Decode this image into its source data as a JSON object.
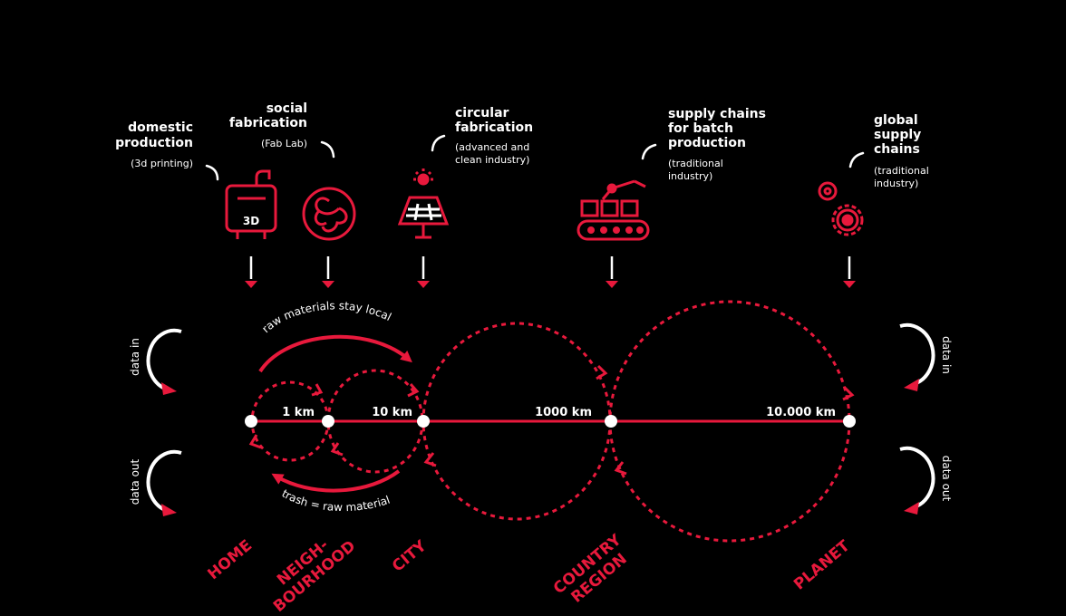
{
  "colors": {
    "accent": "#e8193c",
    "background": "#000000",
    "text": "#ffffff"
  },
  "production_types": [
    {
      "title_lines": [
        "domestic",
        "production"
      ],
      "sub_lines": [
        "(3d printing)"
      ],
      "icon": "3d-printer-icon",
      "icon_text": "3D"
    },
    {
      "title_lines": [
        "social",
        "fabrication"
      ],
      "sub_lines": [
        "(Fab Lab)"
      ],
      "icon": "fab-lab-icon"
    },
    {
      "title_lines": [
        "circular",
        "fabrication"
      ],
      "sub_lines": [
        "(advanced and",
        "clean industry)"
      ],
      "icon": "solar-panel-icon"
    },
    {
      "title_lines": [
        "supply chains",
        "for batch",
        "production"
      ],
      "sub_lines": [
        "(traditional",
        "industry)"
      ],
      "icon": "robot-assembly-line-icon"
    },
    {
      "title_lines": [
        "global",
        "supply",
        "chains"
      ],
      "sub_lines": [
        "(traditional",
        "industry)"
      ],
      "icon": "gears-icon"
    }
  ],
  "distances": [
    "1 km",
    "10 km",
    "1000 km",
    "10.000 km"
  ],
  "flows": {
    "top": "raw materials stay local",
    "bottom": "trash = raw material"
  },
  "data_flows": {
    "in": "data in",
    "out": "data out"
  },
  "scales": [
    {
      "lines": [
        "HOME"
      ]
    },
    {
      "lines": [
        "NEIGH-",
        "BOURHOOD"
      ]
    },
    {
      "lines": [
        "CITY"
      ]
    },
    {
      "lines": [
        "COUNTRY",
        "REGION"
      ]
    },
    {
      "lines": [
        "PLANET"
      ]
    }
  ]
}
